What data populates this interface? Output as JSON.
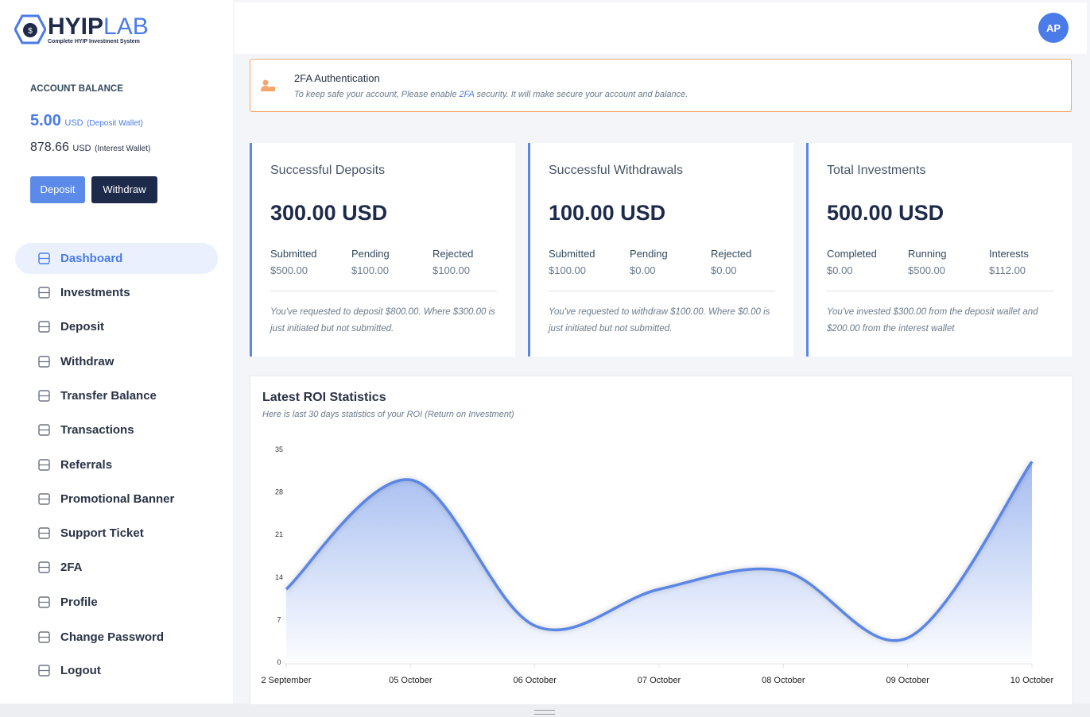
{
  "logo": {
    "name_bold": "HYIP",
    "name_light": "LAB",
    "tagline": "Complete HYIP Investment System"
  },
  "account": {
    "label": "ACCOUNT BALANCE",
    "balances": [
      {
        "amount": "5.00",
        "unit": "USD",
        "wallet": "(Deposit Wallet)"
      },
      {
        "amount": "878.66",
        "unit": "USD",
        "wallet": "(Interest Wallet)"
      }
    ],
    "buttons": [
      "Deposit",
      "Withdraw"
    ]
  },
  "menu": [
    "Dashboard",
    "Investments",
    "Deposit",
    "Withdraw",
    "Transfer Balance",
    "Transactions",
    "Referrals",
    "Promotional Banner",
    "Support Ticket",
    "2FA",
    "Profile",
    "Change Password",
    "Logout"
  ],
  "header": {
    "avatar": "AP"
  },
  "alert": {
    "title": "2FA Authentication",
    "text_before": "To keep safe your account, Please enable",
    "link": "2FA",
    "text_after": "security. It will make secure your account and balance."
  },
  "cards": [
    {
      "title": "Successful Deposits",
      "amount": "300.00 USD",
      "stats": [
        {
          "label": "Submitted",
          "value": "$500.00"
        },
        {
          "label": "Pending",
          "value": "$100.00"
        },
        {
          "label": "Rejected",
          "value": "$100.00"
        }
      ],
      "note": "You've requested to deposit $800.00. Where $300.00 is just initiated but not submitted."
    },
    {
      "title": "Successful Withdrawals",
      "amount": "100.00 USD",
      "stats": [
        {
          "label": "Submitted",
          "value": "$100.00"
        },
        {
          "label": "Pending",
          "value": "$0.00"
        },
        {
          "label": "Rejected",
          "value": "$0.00"
        }
      ],
      "note": "You've requested to withdraw $100.00. Where $0.00 is just initiated but not submitted."
    },
    {
      "title": "Total Investments",
      "amount": "500.00 USD",
      "stats": [
        {
          "label": "Completed",
          "value": "$0.00"
        },
        {
          "label": "Running",
          "value": "$500.00"
        },
        {
          "label": "Interests",
          "value": "$112.00"
        }
      ],
      "note": "You've invested $300.00 from the deposit wallet and $200.00 from the interest wallet"
    }
  ],
  "chart_data": {
    "type": "area",
    "title": "Latest ROI Statistics",
    "subtitle": "Here is last 30 days statistics of your ROI (Return on Investment)",
    "categories": [
      "2 September",
      "05 October",
      "06 October",
      "07 October",
      "08 October",
      "09 October",
      "10 October"
    ],
    "values": [
      12,
      30,
      6,
      12,
      15,
      4,
      33
    ],
    "color": "#5b86e5",
    "ylim": [
      0,
      35
    ],
    "yticks": [
      0,
      7,
      14,
      21,
      28,
      35
    ]
  }
}
